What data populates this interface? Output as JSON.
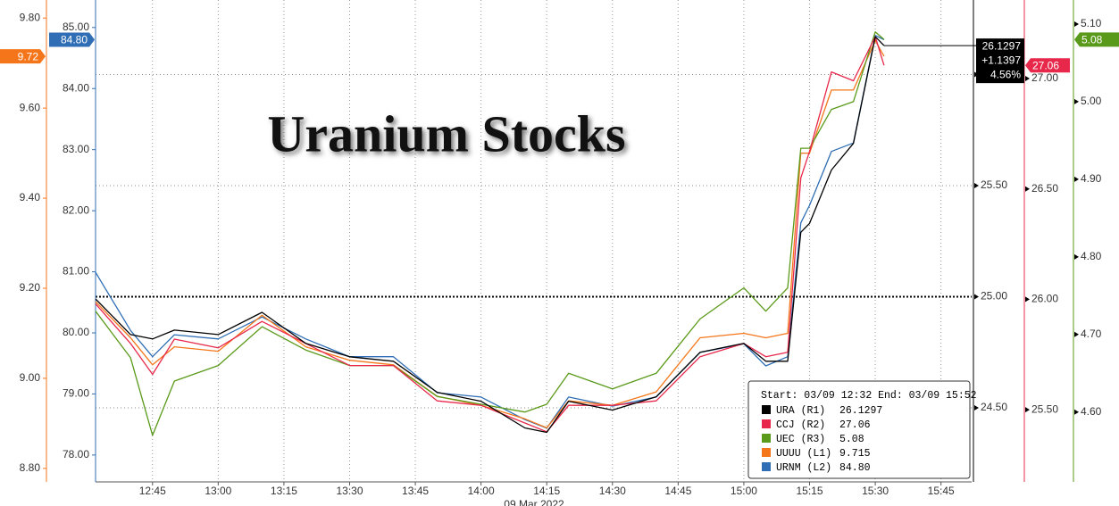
{
  "chart_data": {
    "type": "line",
    "title": "Uranium Stocks",
    "x_label": "09 Mar 2022",
    "legend_title": "Start: 03/09 12:32 End: 03/09 15:52",
    "grid": true,
    "xlim": [
      "12:32",
      "15:52"
    ],
    "xticks": [
      "12:45",
      "13:00",
      "13:15",
      "13:30",
      "13:45",
      "14:00",
      "14:15",
      "14:30",
      "14:45",
      "15:00",
      "15:15",
      "15:30",
      "15:45"
    ],
    "x": [
      "12:32",
      "12:40",
      "12:45",
      "12:50",
      "13:00",
      "13:10",
      "13:20",
      "13:30",
      "13:40",
      "13:50",
      "14:00",
      "14:10",
      "14:15",
      "14:20",
      "14:30",
      "14:40",
      "14:50",
      "15:00",
      "15:05",
      "15:10",
      "15:13",
      "15:15",
      "15:20",
      "15:25",
      "15:30",
      "15:32"
    ],
    "series": [
      {
        "name": "URA (R1)",
        "color": "#000000",
        "legend_value": "26.1297",
        "tag": [
          "26.1297",
          "+1.1397",
          "4.56%"
        ],
        "ylim": [
          24.167,
          26.335
        ],
        "yticks": [
          {
            "value": 24.5,
            "label": "24.50"
          },
          {
            "value": 25,
            "label": "25.00"
          },
          {
            "value": 25.5,
            "label": "25.50"
          },
          {
            "value": 26,
            "label": "26.00"
          }
        ],
        "values": [
          24.99,
          24.83,
          24.81,
          24.85,
          24.83,
          24.93,
          24.79,
          24.73,
          24.71,
          24.57,
          24.53,
          24.41,
          24.39,
          24.53,
          24.49,
          24.55,
          24.75,
          24.79,
          24.71,
          24.71,
          25.29,
          25.33,
          25.57,
          25.69,
          26.17,
          26.1297
        ]
      },
      {
        "name": "CCJ (R2)",
        "color": "#e8284b",
        "legend_value": "27.06",
        "tag": "27.06",
        "ylim": [
          25.173,
          27.356
        ],
        "yticks": [
          {
            "value": 25.5,
            "label": "25.50"
          },
          {
            "value": 26,
            "label": "26.00"
          },
          {
            "value": 26.5,
            "label": "26.50"
          },
          {
            "value": 27,
            "label": "27.00"
          }
        ],
        "values": [
          25.98,
          25.8,
          25.66,
          25.82,
          25.78,
          25.9,
          25.8,
          25.7,
          25.7,
          25.54,
          25.52,
          25.44,
          25.4,
          25.52,
          25.52,
          25.54,
          25.74,
          25.8,
          25.74,
          25.76,
          26.55,
          26.67,
          27.03,
          26.99,
          27.19,
          27.06
        ]
      },
      {
        "name": "UEC (R3)",
        "color": "#5a9a1a",
        "legend_value": "5.08",
        "tag": "5.08",
        "ylim": [
          4.51,
          5.131
        ],
        "yticks": [
          {
            "value": 4.6,
            "label": "4.60"
          },
          {
            "value": 4.7,
            "label": "4.70"
          },
          {
            "value": 4.8,
            "label": "4.80"
          },
          {
            "value": 4.9,
            "label": "4.90"
          },
          {
            "value": 5,
            "label": "5.00"
          },
          {
            "value": 5.1,
            "label": "5.10"
          }
        ],
        "values": [
          4.73,
          4.67,
          4.57,
          4.64,
          4.66,
          4.71,
          4.68,
          4.66,
          4.66,
          4.62,
          4.61,
          4.6,
          4.61,
          4.65,
          4.63,
          4.65,
          4.72,
          4.76,
          4.73,
          4.76,
          4.94,
          4.94,
          4.99,
          5.0,
          5.09,
          5.08
        ]
      },
      {
        "name": "UUUU (L1)",
        "color": "#f5761a",
        "legend_value": "9.715",
        "tag": "9.72",
        "ylim": [
          8.77,
          9.84
        ],
        "yticks": [
          {
            "value": 8.8,
            "label": "8.80"
          },
          {
            "value": 9,
            "label": "9.00"
          },
          {
            "value": 9.2,
            "label": "9.20"
          },
          {
            "value": 9.4,
            "label": "9.40"
          },
          {
            "value": 9.6,
            "label": "9.60"
          },
          {
            "value": 9.8,
            "label": "9.80"
          }
        ],
        "values": [
          9.17,
          9.09,
          9.03,
          9.07,
          9.06,
          9.14,
          9.07,
          9.04,
          9.03,
          8.96,
          8.94,
          8.91,
          8.89,
          8.95,
          8.94,
          8.97,
          9.09,
          9.1,
          9.09,
          9.1,
          9.5,
          9.5,
          9.64,
          9.64,
          9.75,
          9.715
        ]
      },
      {
        "name": "URNM (L2)",
        "color": "#2f6eb5",
        "legend_value": "84.80",
        "tag": "84.80",
        "ylim": [
          77.56,
          85.45
        ],
        "yticks": [
          {
            "value": 78,
            "label": "78.00"
          },
          {
            "value": 79,
            "label": "79.00"
          },
          {
            "value": 80,
            "label": "80.00"
          },
          {
            "value": 81,
            "label": "81.00"
          },
          {
            "value": 82,
            "label": "82.00"
          },
          {
            "value": 83,
            "label": "83.00"
          },
          {
            "value": 84,
            "label": "84.00"
          },
          {
            "value": 85,
            "label": "85.00"
          }
        ],
        "values": [
          80.99,
          80.04,
          79.61,
          79.97,
          79.9,
          80.26,
          79.9,
          79.61,
          79.61,
          79.02,
          78.95,
          78.58,
          78.44,
          78.95,
          78.8,
          78.95,
          79.68,
          79.82,
          79.46,
          79.61,
          81.8,
          82.09,
          82.97,
          83.11,
          84.87,
          84.8
        ]
      }
    ]
  }
}
